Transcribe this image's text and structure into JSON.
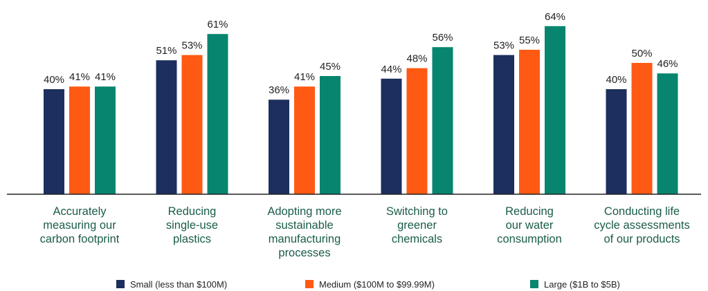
{
  "chart_data": {
    "type": "bar",
    "categories": [
      [
        "Accurately",
        "measuring our",
        "carbon footprint"
      ],
      [
        "Reducing",
        "single-use",
        "plastics"
      ],
      [
        "Adopting more",
        "sustainable",
        "manufacturing",
        "processes"
      ],
      [
        "Switching to",
        "greener",
        "chemicals"
      ],
      [
        "Reducing",
        "our water",
        "consumption"
      ],
      [
        "Conducting life",
        "cycle assessments",
        "of our products"
      ]
    ],
    "series": [
      {
        "name": "Small (less than $100M)",
        "color": "#1c2f5e",
        "values": [
          40,
          51,
          36,
          44,
          53,
          40
        ]
      },
      {
        "name": "Medium ($100M to $99.99M)",
        "color": "#ff5a14",
        "values": [
          41,
          53,
          41,
          48,
          55,
          50
        ]
      },
      {
        "name": "Large ($1B to $5B)",
        "color": "#07856f",
        "values": [
          41,
          61,
          45,
          56,
          64,
          46
        ]
      }
    ],
    "value_suffix": "%",
    "ylim": [
      0,
      70
    ],
    "grid": false,
    "legend_position": "bottom",
    "label_color": "#1a5c4a"
  }
}
